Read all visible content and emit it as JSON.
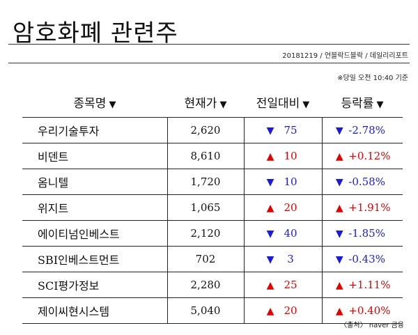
{
  "header": {
    "title": "암호화폐 관련주",
    "byline": "20181219 / 언블락드블락 / 데일리리포트",
    "as_of": "※당일 오전 10:40 기준"
  },
  "table": {
    "sort_icon": "▼",
    "columns": [
      "종목명",
      "현재가",
      "전일대비",
      "등락률"
    ],
    "rows": [
      {
        "name": "우리기술투자",
        "price": "2,620",
        "dir": "down",
        "change": "75",
        "rate": "-2.78%"
      },
      {
        "name": "비덴트",
        "price": "8,610",
        "dir": "up",
        "change": "10",
        "rate": "+0.12%"
      },
      {
        "name": "옴니텔",
        "price": "1,720",
        "dir": "down",
        "change": "10",
        "rate": "-0.58%"
      },
      {
        "name": "위지트",
        "price": "1,065",
        "dir": "up",
        "change": "20",
        "rate": "+1.91%"
      },
      {
        "name": "에이티넘인베스트",
        "price": "2,120",
        "dir": "down",
        "change": "40",
        "rate": "-1.85%"
      },
      {
        "name": "SBI인베스트먼트",
        "price": "702",
        "dir": "down",
        "change": "3",
        "rate": "-0.43%"
      },
      {
        "name": "SCI평가정보",
        "price": "2,280",
        "dir": "up",
        "change": "25",
        "rate": "+1.11%"
      },
      {
        "name": "제이씨현시스템",
        "price": "5,040",
        "dir": "up",
        "change": "20",
        "rate": "+0.40%"
      }
    ]
  },
  "footer": {
    "source": "〈출처〉 naver 금융"
  },
  "colors": {
    "up": "#e00000",
    "down": "#1a1adb"
  },
  "icons": {
    "up": "triangle-up-icon",
    "down": "triangle-down-icon"
  }
}
